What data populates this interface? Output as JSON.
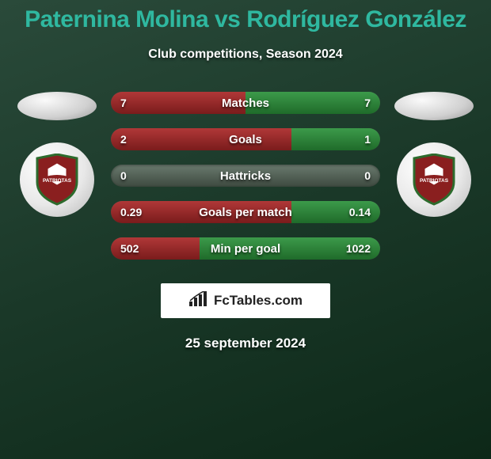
{
  "title_color": "#2fb8a0",
  "title": "Paternina Molina vs Rodríguez González",
  "subtitle": "Club competitions, Season 2024",
  "date": "25 september 2024",
  "branding": {
    "text": "FcTables.com",
    "icon": "bar-chart-icon"
  },
  "club_badge": {
    "name": "PATRIOTAS",
    "shield_fill": "#8a1f1f",
    "shield_stroke": "#2d6b2d",
    "hex_fill": "#ffffff",
    "hex_stroke": "#8a1f1f",
    "band_fill": "#8a1f1f",
    "text_fill": "#ffffff"
  },
  "bars": {
    "track_bg": "linear-gradient(180deg,#6a7a6e 0%,#3e4a40 100%)",
    "left_fill": "linear-gradient(180deg,#b03838 0%,#7a1c1c 100%)",
    "right_fill": "linear-gradient(180deg,#3c9a4a 0%,#1f6b2a 100%)",
    "height": 28,
    "radius": 14,
    "label_fontsize": 15,
    "value_fontsize": 14
  },
  "stats": [
    {
      "label": "Matches",
      "left_val": "7",
      "right_val": "7",
      "left_pct": 50,
      "right_pct": 50
    },
    {
      "label": "Goals",
      "left_val": "2",
      "right_val": "1",
      "left_pct": 67,
      "right_pct": 33
    },
    {
      "label": "Hattricks",
      "left_val": "0",
      "right_val": "0",
      "left_pct": 0,
      "right_pct": 0
    },
    {
      "label": "Goals per match",
      "left_val": "0.29",
      "right_val": "0.14",
      "left_pct": 67,
      "right_pct": 33
    },
    {
      "label": "Min per goal",
      "left_val": "502",
      "right_val": "1022",
      "left_pct": 33,
      "right_pct": 67
    }
  ]
}
